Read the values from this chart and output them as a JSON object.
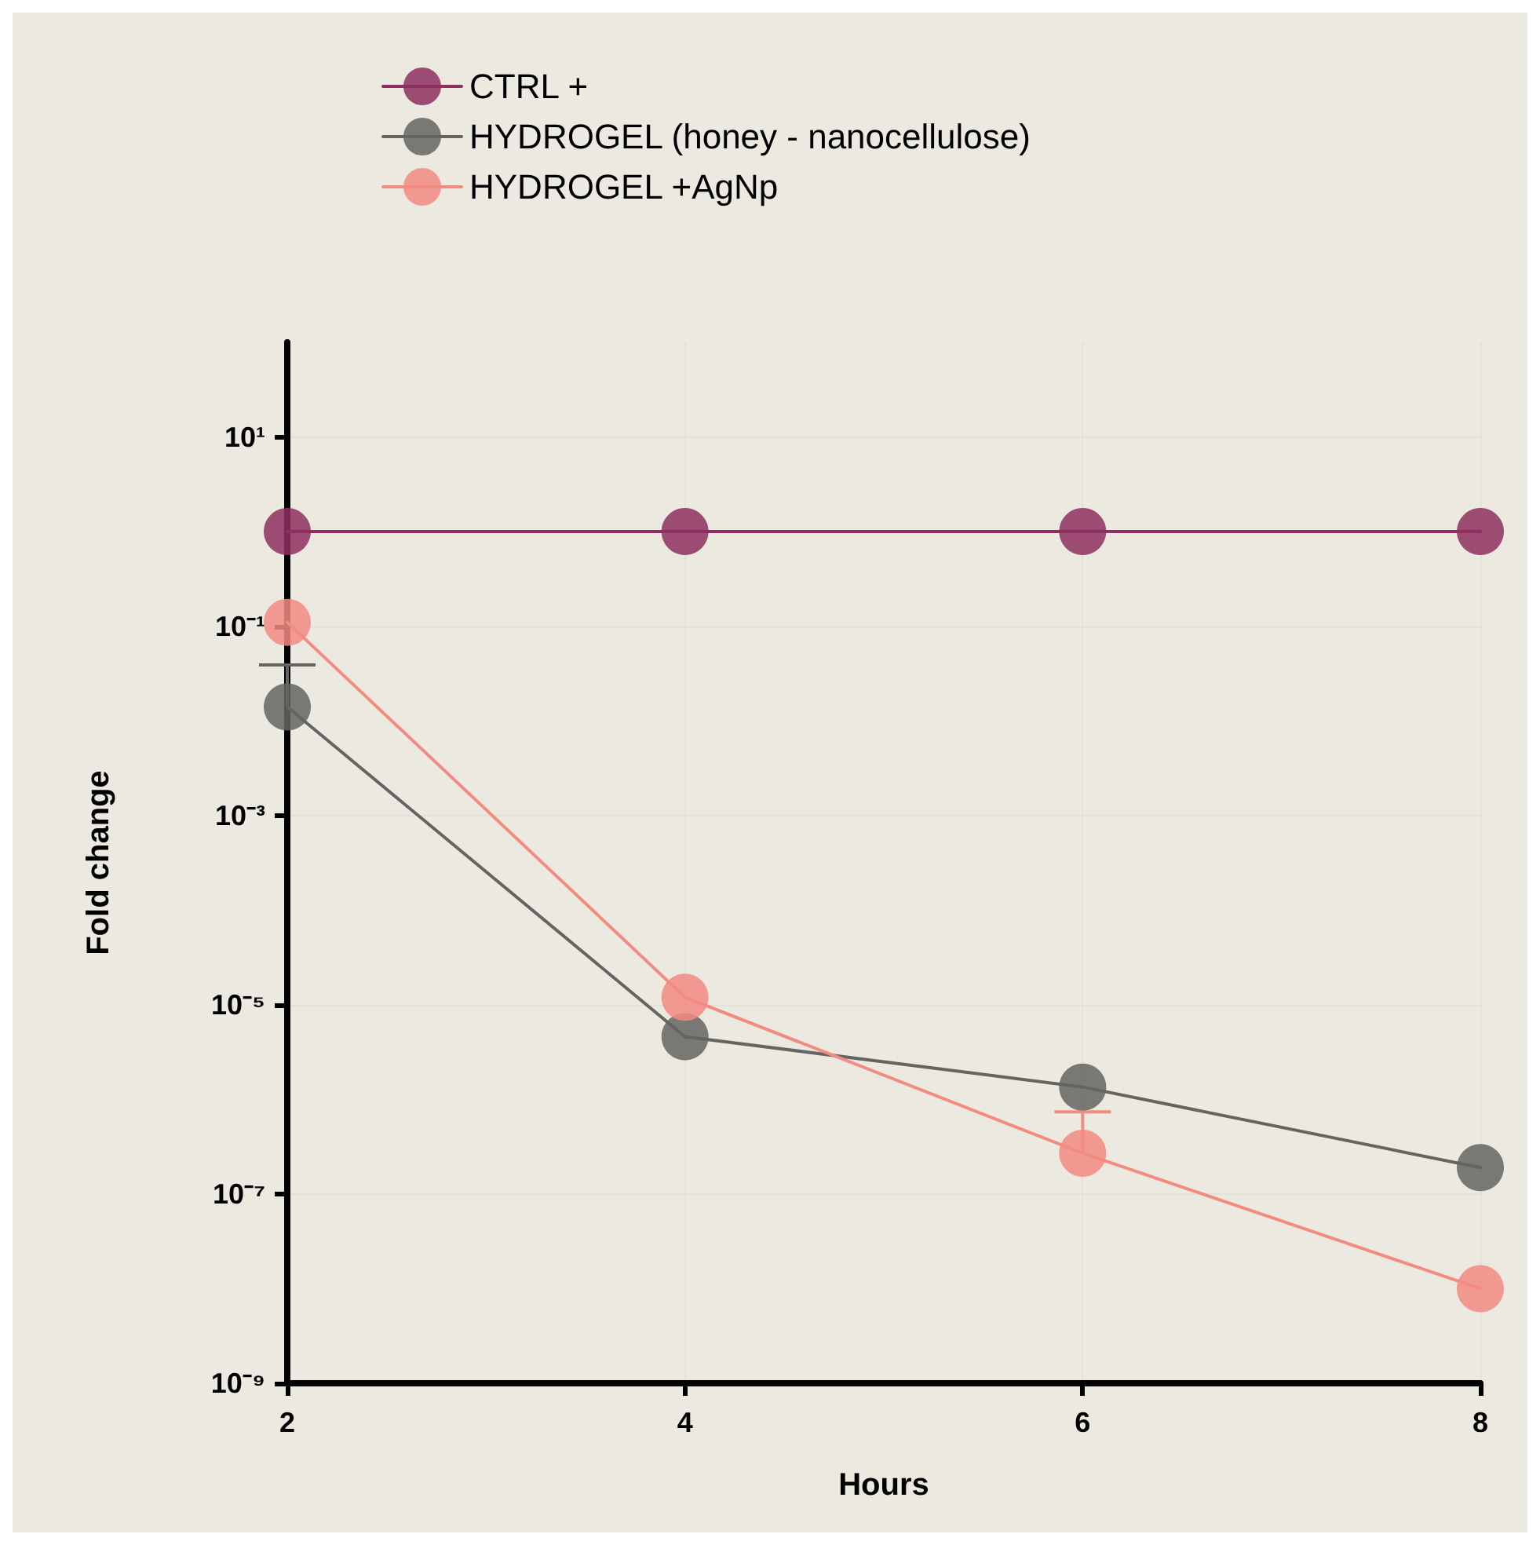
{
  "chart_data": {
    "type": "line",
    "xlabel": "Hours",
    "ylabel": "Fold change",
    "x": [
      2,
      4,
      6,
      8
    ],
    "series": [
      {
        "name": "CTRL +",
        "color": "#8e2f5f",
        "values": [
          1,
          1,
          1,
          1
        ]
      },
      {
        "name": "HYDROGEL (honey - nanocellulose)",
        "color": "#646462",
        "values": [
          0.014,
          4.6e-06,
          1.35e-06,
          1.9e-07
        ],
        "errors": [
          [
            0.014,
            0.039
          ],
          null,
          null,
          null
        ]
      },
      {
        "name": "HYDROGEL +AgNp",
        "color": "#f28b82",
        "values": [
          0.11,
          1.2e-05,
          2.7e-07,
          1e-08
        ],
        "errors": [
          null,
          null,
          [
            2.7e-07,
            7.4e-07
          ],
          null
        ]
      }
    ],
    "log": "y",
    "xlim": [
      2,
      8
    ],
    "xticks": [
      2,
      4,
      6,
      8
    ],
    "ylim": [
      1e-09,
      100
    ],
    "yticks": [
      {
        "value": 10,
        "label": "10¹"
      },
      {
        "value": 0.1,
        "label": "10⁻¹"
      },
      {
        "value": 0.001,
        "label": "10⁻³"
      },
      {
        "value": 1e-05,
        "label": "10⁻⁵"
      },
      {
        "value": 1e-07,
        "label": "10⁻⁷"
      },
      {
        "value": 1e-09,
        "label": "10⁻⁹"
      }
    ],
    "grid": true,
    "legend": "top left",
    "marker": "circle",
    "line_style": "solid"
  }
}
